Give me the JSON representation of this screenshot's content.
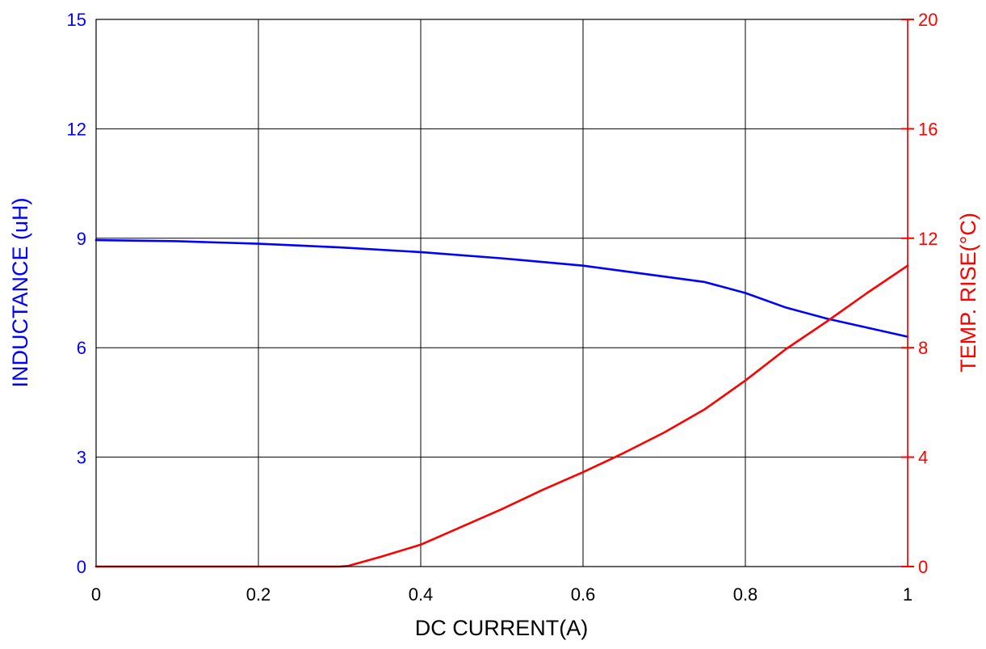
{
  "chart_data": {
    "type": "line",
    "title": "",
    "xlabel": "DC CURRENT(A)",
    "ylabel_left": "INDUCTANCE (uH)",
    "ylabel_right": "TEMP. RISE(°C)",
    "grid": true,
    "xlim": [
      0,
      1
    ],
    "ylim_left": [
      0,
      15
    ],
    "ylim_right": [
      0,
      20
    ],
    "x_ticks": [
      "0",
      "0.2",
      "0.4",
      "0.6",
      "0.8",
      "1"
    ],
    "y_left_ticks": [
      "0",
      "3",
      "6",
      "9",
      "12",
      "15"
    ],
    "y_right_ticks": [
      "0",
      "4",
      "8",
      "12",
      "16",
      "20"
    ],
    "colors": {
      "left_axis": "#0000ff",
      "right_axis": "#ff0000",
      "grid": "#000000"
    },
    "series": [
      {
        "axis": "left",
        "color": "#0000ff",
        "x": [
          0,
          0.1,
          0.2,
          0.3,
          0.4,
          0.5,
          0.6,
          0.65,
          0.7,
          0.75,
          0.8,
          0.85,
          0.9,
          0.95,
          1.0
        ],
        "values": [
          8.95,
          8.92,
          8.85,
          8.75,
          8.62,
          8.45,
          8.25,
          8.1,
          7.95,
          7.8,
          7.5,
          7.1,
          6.8,
          6.55,
          6.3
        ]
      },
      {
        "axis": "right",
        "color": "#ff0000",
        "x": [
          0,
          0.1,
          0.2,
          0.3,
          0.31,
          0.35,
          0.4,
          0.45,
          0.5,
          0.55,
          0.6,
          0.65,
          0.7,
          0.75,
          0.8,
          0.85,
          0.9,
          0.95,
          1.0
        ],
        "values": [
          0,
          0,
          0,
          0,
          0.02,
          0.35,
          0.8,
          1.45,
          2.1,
          2.8,
          3.45,
          4.15,
          4.9,
          5.75,
          6.8,
          7.95,
          8.95,
          10.0,
          11.0
        ]
      }
    ]
  }
}
